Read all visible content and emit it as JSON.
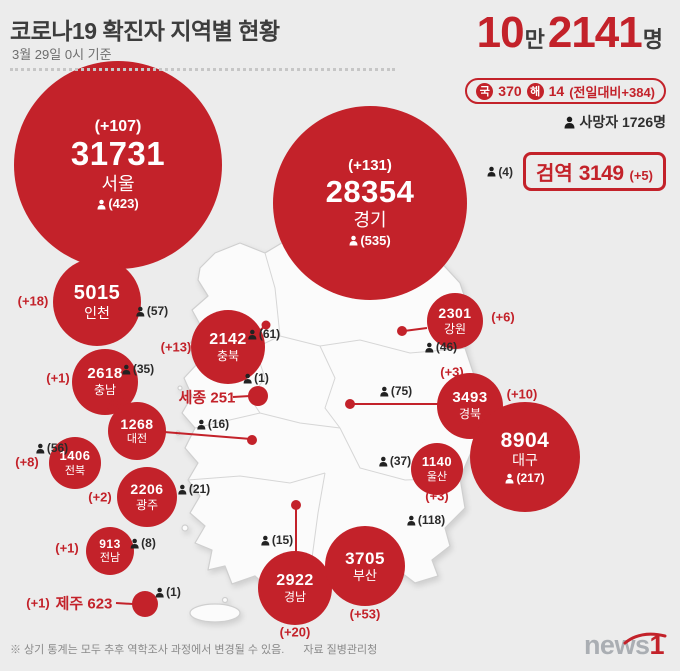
{
  "header": {
    "title": "코로나19 확진자 지역별 현황",
    "date": "3월 29일 0시 기준",
    "total_parts": {
      "p1": "10",
      "u1": "만",
      "p2": "2141",
      "u2": "명"
    },
    "badges": {
      "domestic_label": "국",
      "domestic_value": "370",
      "overseas_label": "해",
      "overseas_value": "14",
      "daily_change": "(전일대비+384)"
    },
    "deaths_total": "사망자 1726명",
    "quarantine": {
      "label": "검역",
      "value": "3149",
      "change": "(+5)",
      "deaths": "(4)"
    }
  },
  "footer": {
    "note": "※ 상기 통계는 모두 추후 역학조사 과정에서 변경될 수 있음.",
    "source": "자료 질병관리청",
    "logo_gray": "news",
    "logo_red": "1"
  },
  "colors": {
    "accent_red": "#c3222a",
    "text_dark": "#3c3c3c",
    "background": "#ececec"
  },
  "chart_data": {
    "type": "bubble-map",
    "title": "코로나19 확진자 지역별 현황",
    "as_of": "3월 29일 0시 기준",
    "total_cases": 102141,
    "daily_new": 384,
    "domestic_new": 370,
    "imported_new": 14,
    "total_deaths": 1726,
    "quarantine": {
      "cases": 3149,
      "new": 5,
      "deaths": 4
    },
    "regions": [
      {
        "name": "서울",
        "cases": 31731,
        "new": 107,
        "deaths": 423
      },
      {
        "name": "경기",
        "cases": 28354,
        "new": 131,
        "deaths": 535
      },
      {
        "name": "인천",
        "cases": 5015,
        "new": 18,
        "deaths": 57
      },
      {
        "name": "충북",
        "cases": 2142,
        "new": 13,
        "deaths": 61
      },
      {
        "name": "충남",
        "cases": 2618,
        "new": 1,
        "deaths": 35
      },
      {
        "name": "세종",
        "cases": 251,
        "new": null,
        "deaths": 1
      },
      {
        "name": "대전",
        "cases": 1268,
        "new": 2,
        "deaths": 16
      },
      {
        "name": "전북",
        "cases": 1406,
        "new": 8,
        "deaths": 56
      },
      {
        "name": "광주",
        "cases": 2206,
        "new": 2,
        "deaths": 21
      },
      {
        "name": "전남",
        "cases": 913,
        "new": 1,
        "deaths": 8
      },
      {
        "name": "제주",
        "cases": 623,
        "new": 1,
        "deaths": 1
      },
      {
        "name": "강원",
        "cases": 2301,
        "new": 6,
        "deaths": 46
      },
      {
        "name": "경북",
        "cases": 3493,
        "new": 3,
        "deaths": 75
      },
      {
        "name": "대구",
        "cases": 8904,
        "new": 10,
        "deaths": 217
      },
      {
        "name": "울산",
        "cases": 1140,
        "new": 3,
        "deaths": 37
      },
      {
        "name": "경남",
        "cases": 2922,
        "new": 20,
        "deaths": 15
      },
      {
        "name": "부산",
        "cases": 3705,
        "new": 53,
        "deaths": 118
      }
    ]
  }
}
